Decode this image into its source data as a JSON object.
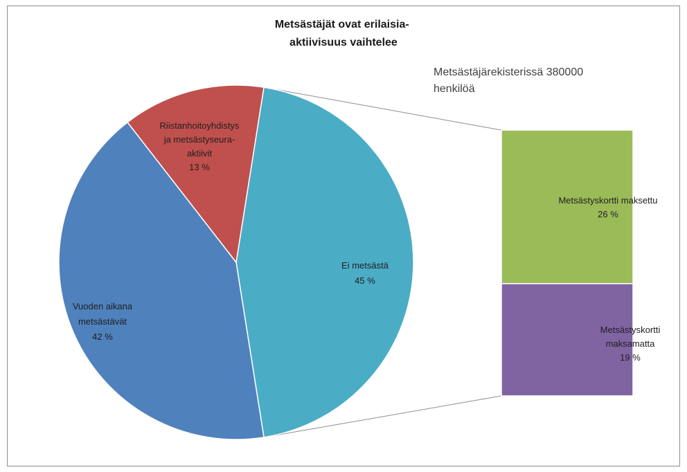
{
  "chart_data": {
    "type": "bar-of-pie",
    "title": "Metsästäjät ovat erilaisia-aktiivisuus vaihtelee",
    "title_lines": [
      "Metsästäjät ovat erilaisia-",
      "aktiivisuus vaihtelee"
    ],
    "note": "Metsästäjärekisterissä 380000 henkilöä",
    "note_lines": [
      "Metsästäjärekisterissä 380000",
      "henkilöä"
    ],
    "pie": {
      "slices": [
        {
          "label": "Ei metsästä",
          "label_lines": [
            "Ei metsästä"
          ],
          "value": 45,
          "value_label": "45 %",
          "color": "#4bacc6"
        },
        {
          "label": "Vuoden aikana metsästävät",
          "label_lines": [
            "Vuoden aikana",
            "metsästävät"
          ],
          "value": 42,
          "value_label": "42 %",
          "color": "#4f81bd"
        },
        {
          "label": "Riistanhoitoyhdistys ja metsästyseura-aktiivit",
          "label_lines": [
            "Riistanhoitoyhdistys",
            "ja metsästyseura-",
            "aktiivit"
          ],
          "value": 13,
          "value_label": "13 %",
          "color": "#c0504d"
        }
      ]
    },
    "bar": {
      "segments": [
        {
          "label": "Metsästyskortti maksettu",
          "label_lines": [
            "Metsästyskortti maksettu"
          ],
          "value": 26,
          "value_label": "26 %",
          "color": "#9bbb59"
        },
        {
          "label": "Metsästyskortti maksamatta",
          "label_lines": [
            "Metsästyskortti",
            "maksamatta"
          ],
          "value": 19,
          "value_label": "19 %",
          "color": "#8064a2"
        }
      ]
    }
  }
}
